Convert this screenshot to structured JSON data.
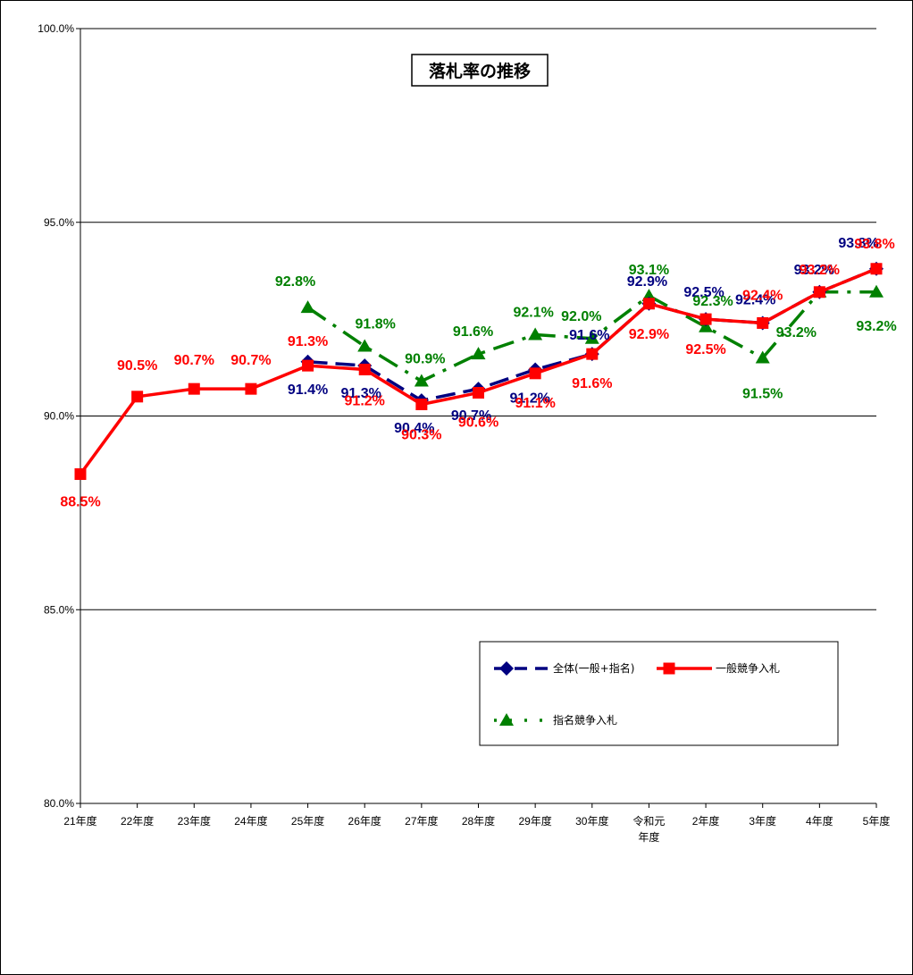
{
  "chart_data": {
    "type": "line",
    "title": "落札率の推移",
    "categories": [
      "21年度",
      "22年度",
      "23年度",
      "24年度",
      "25年度",
      "26年度",
      "27年度",
      "28年度",
      "29年度",
      "30年度",
      "令和元\n年度",
      "2年度",
      "3年度",
      "4年度",
      "5年度"
    ],
    "ylim": [
      80.0,
      100.0
    ],
    "yticks": [
      "80.0%",
      "85.0%",
      "90.0%",
      "95.0%",
      "100.0%"
    ],
    "grid": true,
    "legend_position": "bottom-right",
    "series": [
      {
        "name": "全体(一般+指名)",
        "color": "#000080",
        "marker": "diamond",
        "line_style": "dashed",
        "values": [
          null,
          null,
          null,
          null,
          91.4,
          91.3,
          90.4,
          90.7,
          91.2,
          91.6,
          92.9,
          92.5,
          92.4,
          93.2,
          93.8
        ],
        "labels": [
          "",
          "",
          "",
          "",
          "91.4%",
          "91.3%",
          "90.4%",
          "90.7%",
          "91.2%",
          "91.6%",
          "92.9%",
          "92.5%",
          "92.4%",
          "93.2%",
          "93.8%"
        ]
      },
      {
        "name": "一般競争入札",
        "color": "#ff0000",
        "marker": "square",
        "line_style": "solid",
        "values": [
          88.5,
          90.5,
          90.7,
          90.7,
          91.3,
          91.2,
          90.3,
          90.6,
          91.1,
          91.6,
          92.9,
          92.5,
          92.4,
          93.2,
          93.8
        ],
        "labels": [
          "88.5%",
          "90.5%",
          "90.7%",
          "90.7%",
          "91.3%",
          "91.2%",
          "90.3%",
          "90.6%",
          "91.1%",
          "91.6%",
          "92.9%",
          "92.5%",
          "92.4%",
          "93.2%",
          "93.8%"
        ]
      },
      {
        "name": "指名競争入札",
        "color": "#008000",
        "marker": "triangle",
        "line_style": "dash-dot",
        "values": [
          null,
          null,
          null,
          null,
          92.8,
          91.8,
          90.9,
          91.6,
          92.1,
          92.0,
          93.1,
          92.3,
          91.5,
          93.2,
          93.2
        ],
        "labels": [
          "",
          "",
          "",
          "",
          "92.8%",
          "91.8%",
          "90.9%",
          "91.6%",
          "92.1%",
          "92.0%",
          "93.1%",
          "92.3%",
          "91.5%",
          "93.2%",
          "93.2%"
        ]
      }
    ]
  }
}
